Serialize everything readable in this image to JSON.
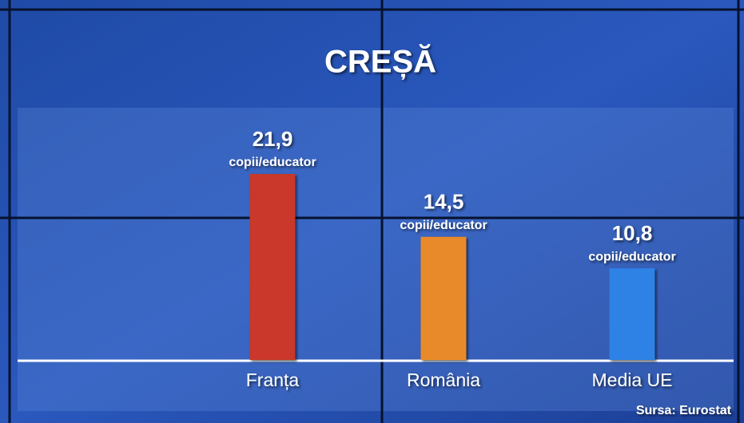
{
  "chart_data": {
    "type": "bar",
    "title": "CREȘĂ",
    "categories": [
      "Franța",
      "România",
      "Media UE"
    ],
    "values": [
      21.9,
      14.5,
      10.8
    ],
    "value_labels": [
      "21,9",
      "14,5",
      "10,8"
    ],
    "unit": "copii/educator",
    "colors": [
      "#c9372a",
      "#e98a2b",
      "#2f82e6"
    ],
    "source": "Sursa: Eurostat"
  }
}
